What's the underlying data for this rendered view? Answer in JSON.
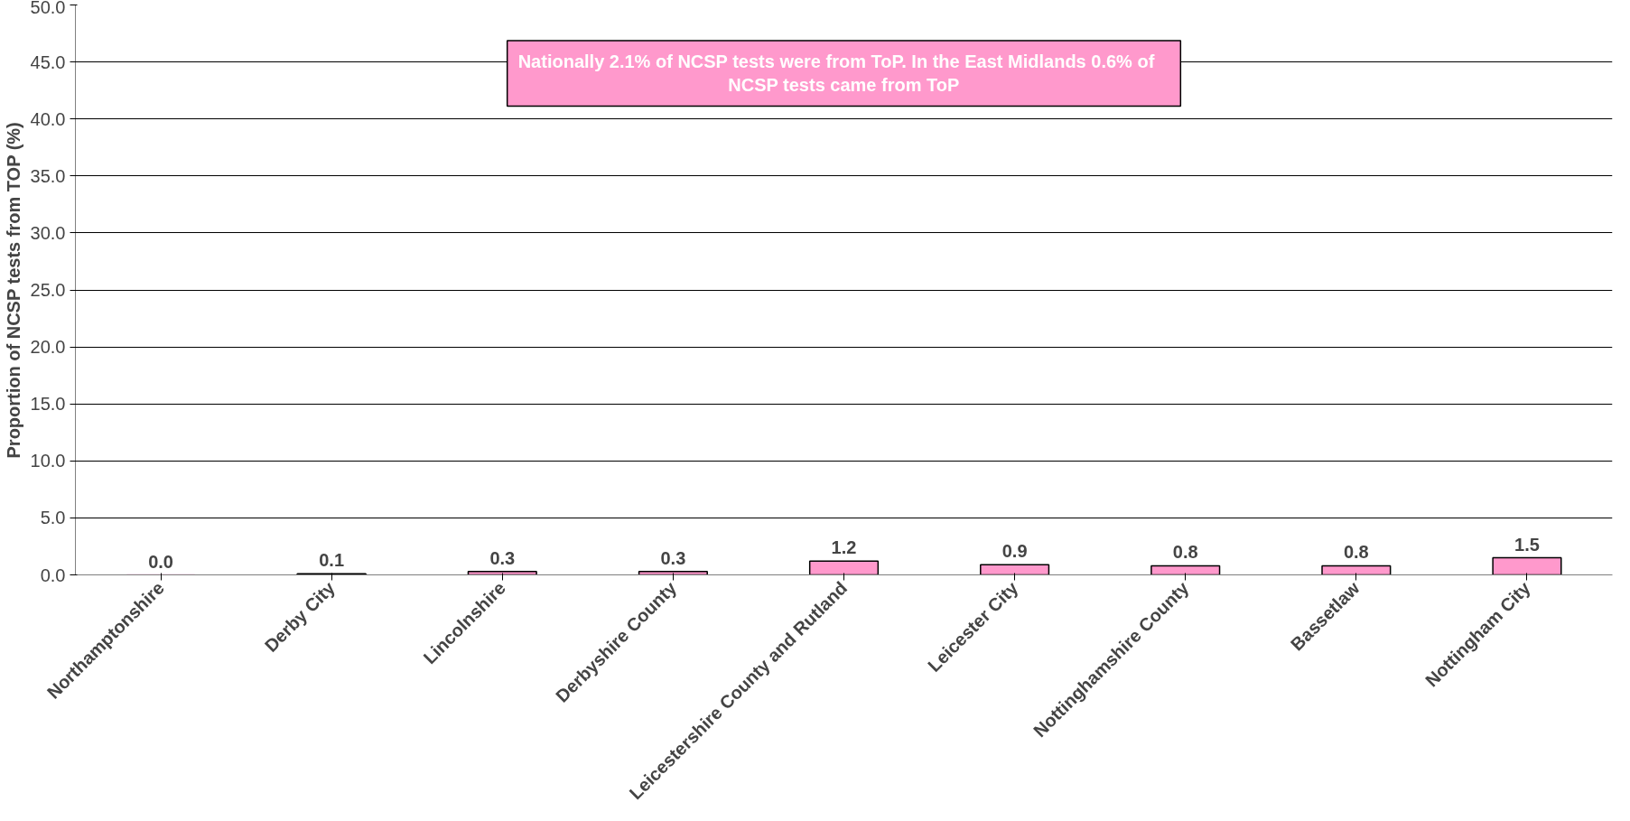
{
  "chart_data": {
    "type": "bar",
    "ylabel": "Proportion of NCSP tests from TOP (%)",
    "categories": [
      "Northamptonshire",
      "Derby City",
      "Lincolnshire",
      "Derbyshire County",
      "Leicestershire County and Rutland",
      "Leicester City",
      "Nottinghamshire County",
      "Bassetlaw",
      "Nottingham City"
    ],
    "values": [
      0.0,
      0.1,
      0.3,
      0.3,
      1.2,
      0.9,
      0.8,
      0.8,
      1.5
    ],
    "color": "#ff99cc",
    "ylim": [
      0,
      50
    ],
    "yticks": [
      {
        "value": 0,
        "label": "0.0"
      },
      {
        "value": 5,
        "label": "5.0"
      },
      {
        "value": 10,
        "label": "10.0"
      },
      {
        "value": 15,
        "label": "15.0"
      },
      {
        "value": 20,
        "label": "20.0"
      },
      {
        "value": 25,
        "label": "25.0"
      },
      {
        "value": 30,
        "label": "30.0"
      },
      {
        "value": 35,
        "label": "35.0"
      },
      {
        "value": 40,
        "label": "40.0"
      },
      {
        "value": 45,
        "label": "45.0"
      },
      {
        "value": 50,
        "label": "50.0"
      }
    ],
    "grid": "y",
    "value_labels": [
      "0.0",
      "0.1",
      "0.3",
      "0.3",
      "1.2",
      "0.9",
      "0.8",
      "0.8",
      "1.5"
    ],
    "annotations": [
      "Nationally 2.1% of NCSP tests were from  ToP.  In the East Midlands  0.6% of NCSP tests came from ToP"
    ]
  }
}
